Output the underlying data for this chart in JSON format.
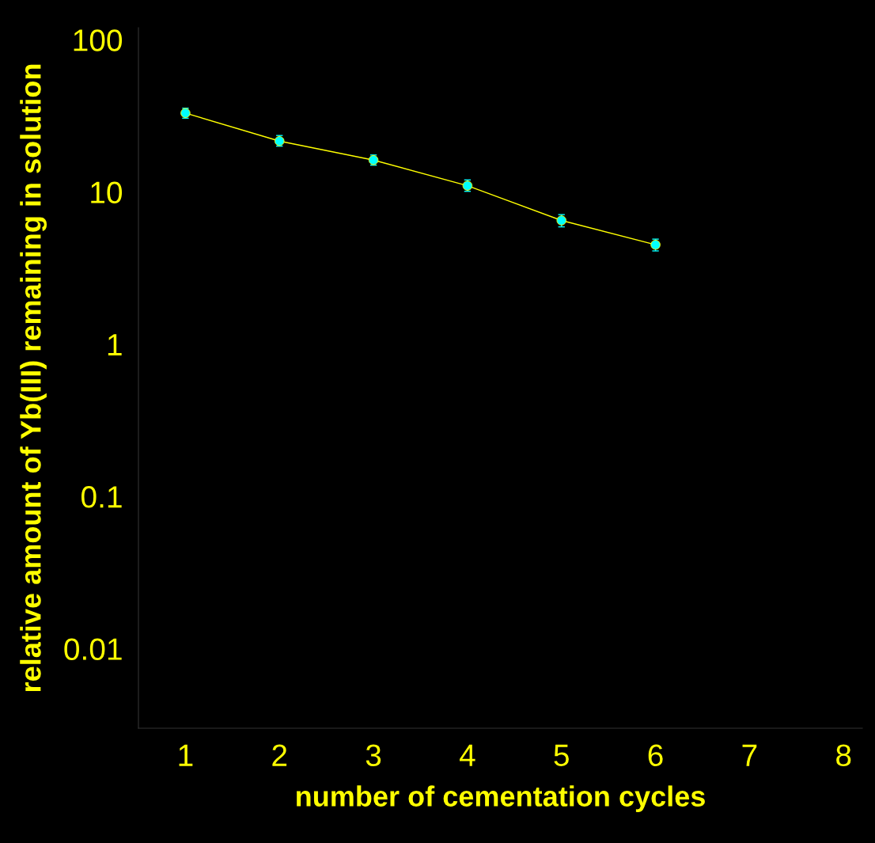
{
  "chart_data": {
    "type": "line",
    "xlabel": "number of cementation cycles",
    "ylabel": "relative amount of Yb(III) remaining in solution",
    "x": [
      1,
      2,
      3,
      4,
      5,
      6
    ],
    "series": [
      {
        "color": "#ffff00",
        "values": [
          33,
          21.6,
          16.2,
          11,
          6.5,
          4.5
        ],
        "errors": [
          [
            30.5,
            35.5
          ],
          [
            20,
            23.5
          ],
          [
            15,
            17.5
          ],
          [
            10.1,
            12
          ],
          [
            5.9,
            7.1
          ],
          [
            4.1,
            4.9
          ]
        ]
      }
    ],
    "log": "y",
    "xlim": [
      0.5,
      8.2
    ],
    "xticks": [
      1,
      2,
      3,
      4,
      5,
      6,
      7,
      8
    ],
    "ylim": [
      0.003,
      120
    ],
    "yticks": [
      0.01,
      0.1,
      1,
      10,
      100
    ],
    "marker": "circle",
    "grid": false,
    "legend": false
  }
}
